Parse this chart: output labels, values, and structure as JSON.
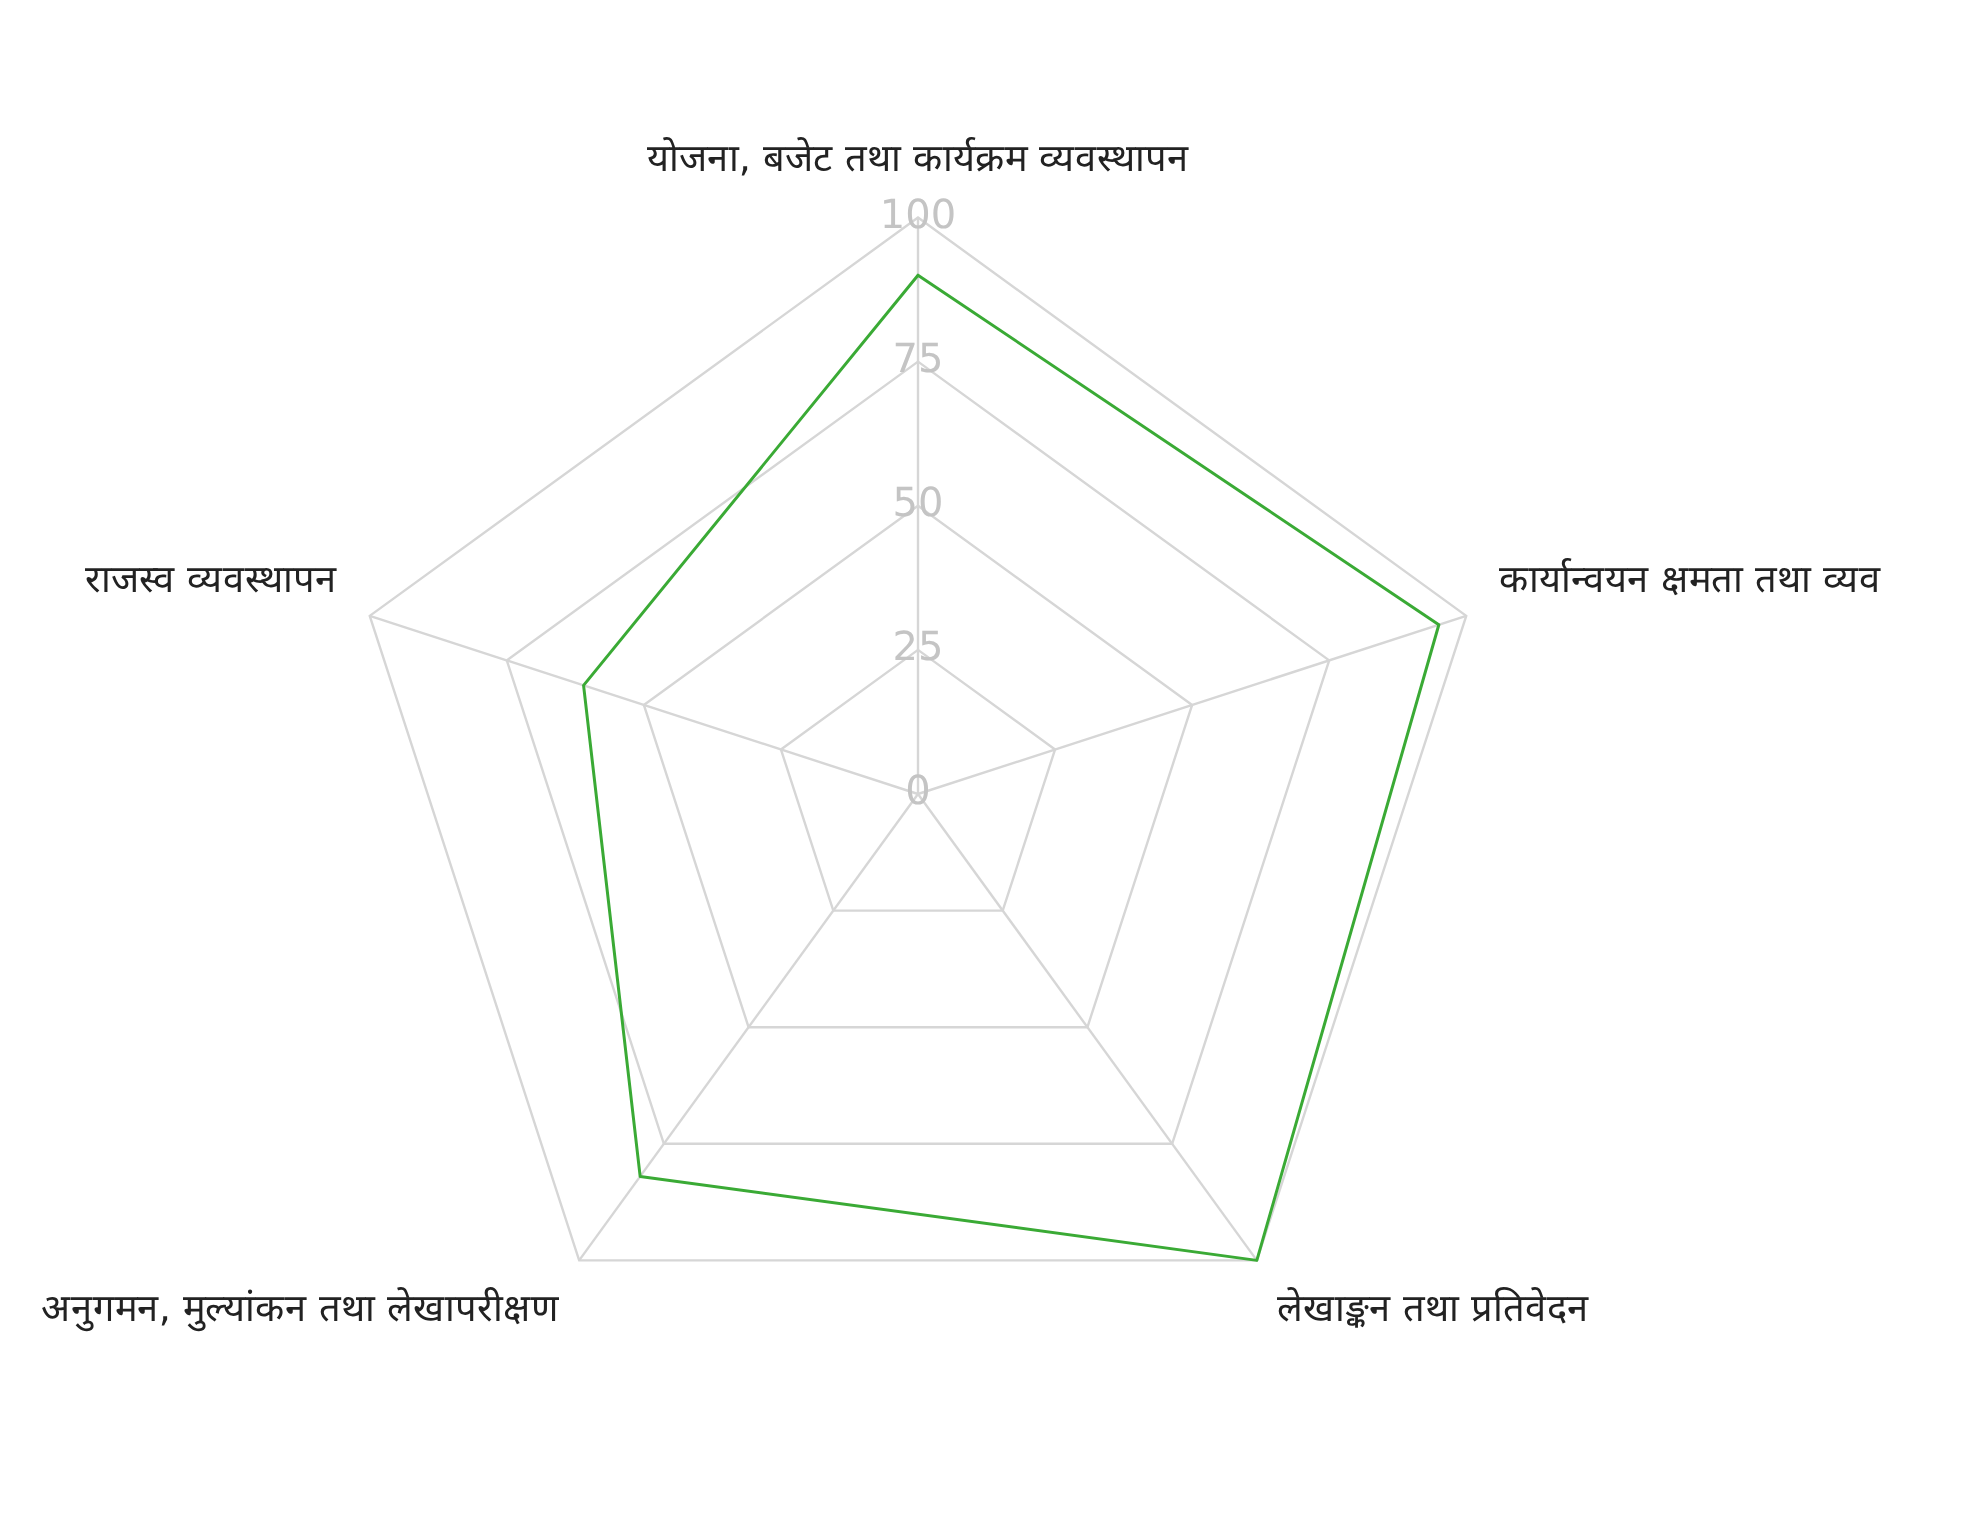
{
  "chart_data": {
    "type": "radar",
    "categories": [
      "योजना, बजेट तथा कार्यक्रम व्यवस्थापन",
      "कार्यान्वयन क्षमता तथा व्यव",
      "लेखाङ्कन तथा प्रतिवेदन",
      "अनुगमन, मुल्यांकन तथा लेखापरीक्षण",
      "राजस्व व्यवस्थापन"
    ],
    "series": [
      {
        "color": "#3aaa35",
        "values": [
          90,
          95,
          100,
          82,
          61
        ]
      }
    ],
    "ylim": [
      0,
      100
    ],
    "yticks": [
      0,
      25,
      50,
      75,
      100
    ],
    "grid": true,
    "legend": false,
    "marker": "none",
    "line_style": "solid"
  }
}
